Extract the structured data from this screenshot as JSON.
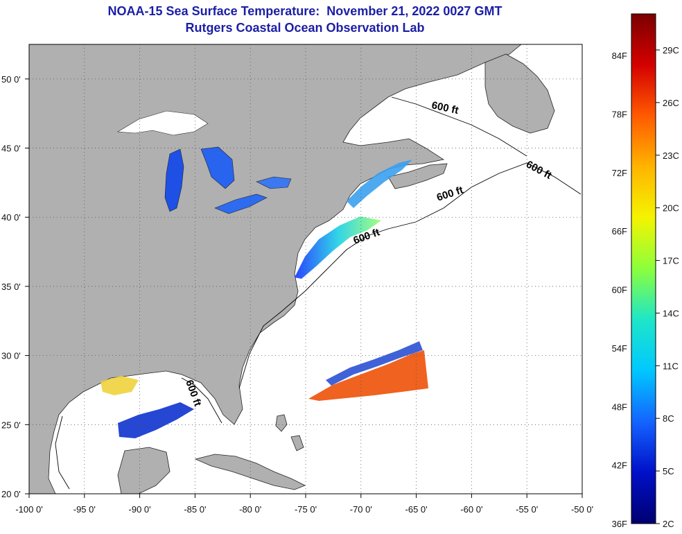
{
  "title": {
    "line1": "NOAA-15 Sea Surface Temperature:  November 21, 2022 0027 GMT",
    "line2": "Rutgers Coastal Ocean Observation Lab"
  },
  "map": {
    "lon_range": [
      -100,
      -50
    ],
    "lat_range": [
      20,
      52.5
    ],
    "x_ticks": [
      "-100 0'",
      "-95 0'",
      "-90 0'",
      "-85 0'",
      "-80 0'",
      "-75 0'",
      "-70 0'",
      "-65 0'",
      "-60 0'",
      "-55 0'",
      "-50 0'"
    ],
    "y_ticks": [
      "50 0'",
      "45 0'",
      "40 0'",
      "35 0'",
      "30 0'",
      "25 0'",
      "20 0'"
    ],
    "grid": "dotted",
    "land_color": "#b0b0b0",
    "ocean_color": "#ffffff",
    "contour_labels": [
      "600 ft",
      "600 ft",
      "600 ft",
      "600 ft",
      "600 ft"
    ]
  },
  "colorbar": {
    "fahrenheit_labels": [
      "84F",
      "78F",
      "72F",
      "66F",
      "60F",
      "54F",
      "48F",
      "42F",
      "36F"
    ],
    "celsius_labels": [
      "29C",
      "26C",
      "23C",
      "20C",
      "17C",
      "14C",
      "11C",
      "8C",
      "5C",
      "2C"
    ],
    "colors": [
      "#7a0000",
      "#d40000",
      "#ff5a00",
      "#ffb400",
      "#f4f400",
      "#8cff3c",
      "#1ee6c8",
      "#00c8ff",
      "#1464ff",
      "#0010c8",
      "#000070"
    ]
  }
}
